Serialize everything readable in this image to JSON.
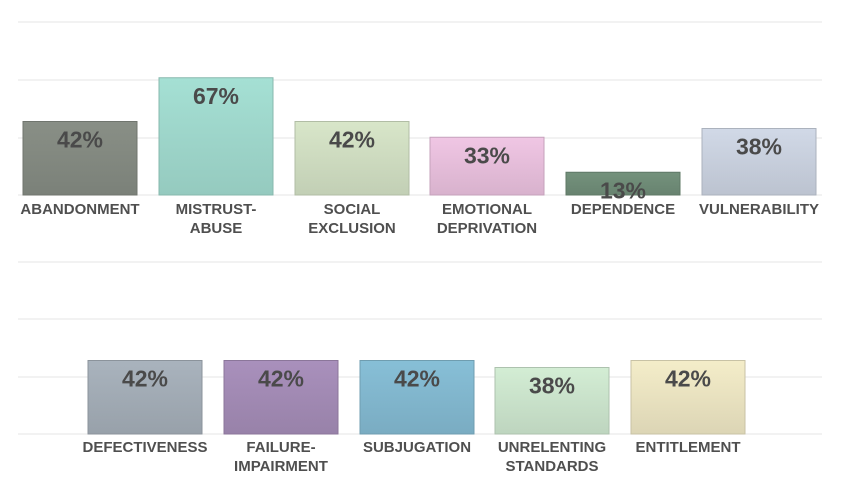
{
  "chart_data": [
    {
      "type": "bar",
      "categories": [
        "ABANDONMENT",
        "MISTRUST-ABUSE",
        "SOCIAL EXCLUSION",
        "EMOTIONAL DEPRIVATION",
        "DEPENDENCE",
        "VULNERABILITY"
      ],
      "category_lines": [
        [
          "ABANDONMENT"
        ],
        [
          "MISTRUST-",
          "ABUSE"
        ],
        [
          "SOCIAL",
          "EXCLUSION"
        ],
        [
          "EMOTIONAL",
          "DEPRIVATION"
        ],
        [
          "DEPENDENCE"
        ],
        [
          "VULNERABILITY"
        ]
      ],
      "values": [
        42,
        67,
        42,
        33,
        13,
        38
      ],
      "value_labels": [
        "42%",
        "67%",
        "42%",
        "33%",
        "13%",
        "38%"
      ],
      "colors": [
        "#898f86",
        "#a5e0d4",
        "#d8e6c9",
        "#f0c6e4",
        "#74927c",
        "#d1d9e7"
      ],
      "ylim": [
        0,
        100
      ],
      "grid": true,
      "legend": "none"
    },
    {
      "type": "bar",
      "categories": [
        "DEFECTIVENESS",
        "FAILURE-IMPAIRMENT",
        "SUBJUGATION",
        "UNRELENTING STANDARDS",
        "ENTITLEMENT"
      ],
      "category_lines": [
        [
          "DEFECTIVENESS"
        ],
        [
          "FAILURE-",
          "IMPAIRMENT"
        ],
        [
          "SUBJUGATION"
        ],
        [
          "UNRELENTING",
          "STANDARDS"
        ],
        [
          "ENTITLEMENT"
        ]
      ],
      "values": [
        42,
        42,
        42,
        38,
        42
      ],
      "value_labels": [
        "42%",
        "42%",
        "42%",
        "38%",
        "42%"
      ],
      "colors": [
        "#a9b3bd",
        "#a990bc",
        "#87bfd7",
        "#d3edd4",
        "#f4edc9"
      ],
      "ylim": [
        0,
        100
      ],
      "grid": true,
      "legend": "none"
    }
  ]
}
